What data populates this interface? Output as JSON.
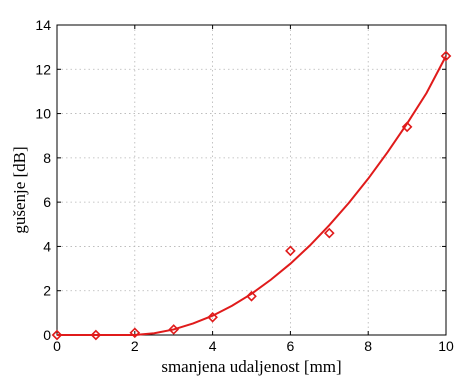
{
  "colors": {
    "series": "#e01b1b",
    "axis": "#000000",
    "grid": "#b5b5b5"
  },
  "chart_data": {
    "type": "scatter",
    "title": "",
    "xlabel": "smanjena udaljenost [mm]",
    "ylabel": "gušenje [dB]",
    "xlim": [
      0,
      10
    ],
    "ylim": [
      0,
      14
    ],
    "xticks": [
      0,
      2,
      4,
      6,
      8,
      10
    ],
    "yticks": [
      0,
      2,
      4,
      6,
      8,
      10,
      12,
      14
    ],
    "grid": true,
    "series": [
      {
        "marker": "diamond",
        "x": [
          0,
          1,
          2,
          3,
          4,
          5,
          6,
          7,
          9,
          10
        ],
        "y": [
          0.0,
          0.0,
          0.1,
          0.25,
          0.8,
          1.75,
          3.8,
          4.6,
          9.4,
          12.6
        ]
      },
      {
        "style": "line",
        "x": [
          0,
          1,
          2,
          2.5,
          3,
          3.5,
          4,
          4.5,
          5,
          5.5,
          6,
          6.5,
          7,
          7.5,
          8,
          8.5,
          9,
          9.5,
          10
        ],
        "y": [
          0,
          0,
          0,
          0.08,
          0.25,
          0.52,
          0.87,
          1.32,
          1.86,
          2.5,
          3.22,
          4.04,
          4.96,
          5.96,
          7.06,
          8.26,
          9.55,
          10.93,
          12.6
        ]
      }
    ]
  }
}
